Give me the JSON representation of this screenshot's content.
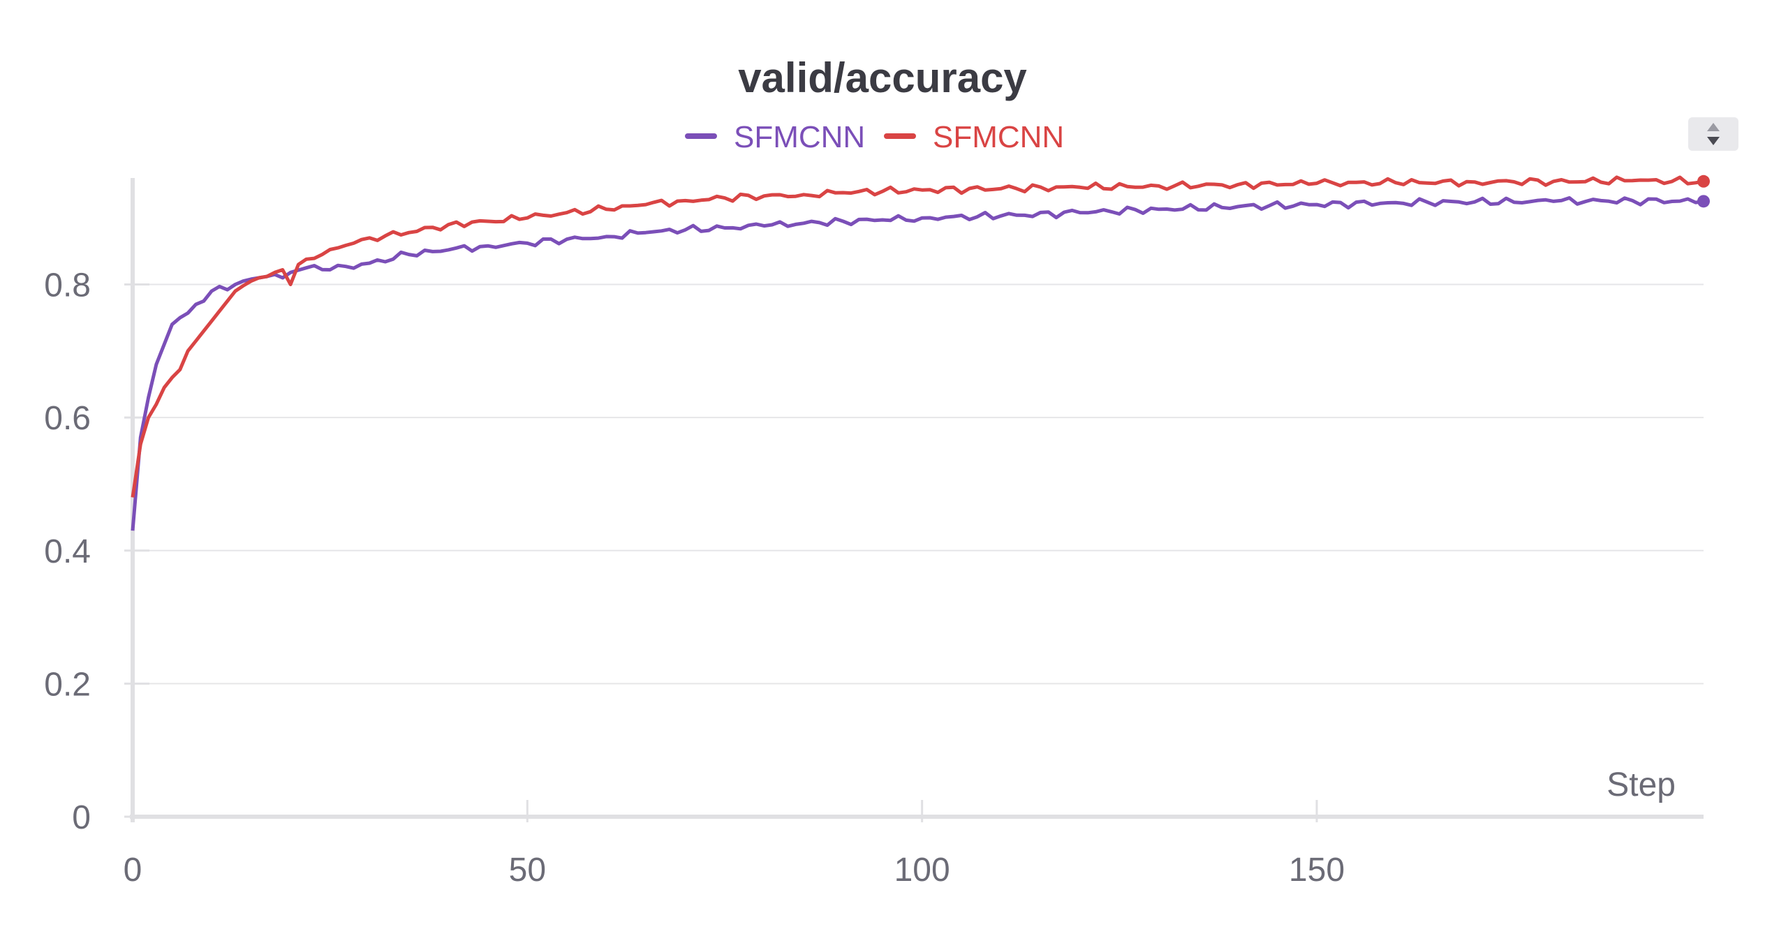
{
  "chart_data": {
    "type": "line",
    "title": "valid/accuracy",
    "xlabel": "Step",
    "ylabel": "",
    "xlim": [
      0,
      199
    ],
    "ylim": [
      0,
      0.96
    ],
    "x_ticks": [
      0,
      50,
      100,
      150
    ],
    "y_ticks": [
      0,
      0.2,
      0.4,
      0.6,
      0.8
    ],
    "y_tick_labels": [
      "0",
      "0.2",
      "0.4",
      "0.6",
      "0.8"
    ],
    "grid": true,
    "legend_position": "top-center",
    "series": [
      {
        "name": "SFMCNN",
        "color": "#7b4fb8",
        "anchors": [
          [
            0,
            0.43
          ],
          [
            1,
            0.57
          ],
          [
            2,
            0.63
          ],
          [
            3,
            0.68
          ],
          [
            4,
            0.71
          ],
          [
            5,
            0.74
          ],
          [
            6,
            0.75
          ],
          [
            7,
            0.757
          ],
          [
            8,
            0.77
          ],
          [
            9,
            0.775
          ],
          [
            10,
            0.79
          ],
          [
            11,
            0.797
          ],
          [
            12,
            0.792
          ],
          [
            13,
            0.8
          ],
          [
            14,
            0.805
          ],
          [
            15,
            0.808
          ],
          [
            16,
            0.81
          ],
          [
            17,
            0.812
          ],
          [
            18,
            0.815
          ],
          [
            19,
            0.81
          ],
          [
            20,
            0.818
          ],
          [
            22,
            0.825
          ],
          [
            25,
            0.822
          ],
          [
            30,
            0.832
          ],
          [
            35,
            0.845
          ],
          [
            40,
            0.852
          ],
          [
            45,
            0.858
          ],
          [
            50,
            0.862
          ],
          [
            55,
            0.868
          ],
          [
            60,
            0.872
          ],
          [
            65,
            0.878
          ],
          [
            70,
            0.882
          ],
          [
            75,
            0.885
          ],
          [
            80,
            0.888
          ],
          [
            85,
            0.892
          ],
          [
            90,
            0.895
          ],
          [
            95,
            0.897
          ],
          [
            100,
            0.9
          ],
          [
            110,
            0.903
          ],
          [
            120,
            0.908
          ],
          [
            130,
            0.913
          ],
          [
            140,
            0.917
          ],
          [
            150,
            0.92
          ],
          [
            160,
            0.923
          ],
          [
            170,
            0.924
          ],
          [
            180,
            0.925
          ],
          [
            190,
            0.926
          ],
          [
            199,
            0.925
          ]
        ]
      },
      {
        "name": "SFMCNN",
        "color": "#d94444",
        "anchors": [
          [
            0,
            0.48
          ],
          [
            1,
            0.56
          ],
          [
            2,
            0.6
          ],
          [
            3,
            0.62
          ],
          [
            4,
            0.645
          ],
          [
            5,
            0.66
          ],
          [
            6,
            0.672
          ],
          [
            7,
            0.7
          ],
          [
            8,
            0.715
          ],
          [
            9,
            0.73
          ],
          [
            10,
            0.745
          ],
          [
            11,
            0.76
          ],
          [
            12,
            0.775
          ],
          [
            13,
            0.79
          ],
          [
            14,
            0.798
          ],
          [
            15,
            0.805
          ],
          [
            16,
            0.81
          ],
          [
            17,
            0.812
          ],
          [
            18,
            0.818
          ],
          [
            19,
            0.822
          ],
          [
            20,
            0.8
          ],
          [
            21,
            0.83
          ],
          [
            22,
            0.838
          ],
          [
            24,
            0.845
          ],
          [
            26,
            0.855
          ],
          [
            28,
            0.862
          ],
          [
            30,
            0.87
          ],
          [
            35,
            0.878
          ],
          [
            40,
            0.89
          ],
          [
            45,
            0.895
          ],
          [
            50,
            0.9
          ],
          [
            55,
            0.908
          ],
          [
            60,
            0.913
          ],
          [
            65,
            0.92
          ],
          [
            70,
            0.926
          ],
          [
            75,
            0.93
          ],
          [
            80,
            0.933
          ],
          [
            85,
            0.935
          ],
          [
            90,
            0.938
          ],
          [
            95,
            0.94
          ],
          [
            100,
            0.942
          ],
          [
            110,
            0.944
          ],
          [
            120,
            0.946
          ],
          [
            130,
            0.948
          ],
          [
            140,
            0.95
          ],
          [
            150,
            0.952
          ],
          [
            160,
            0.953
          ],
          [
            170,
            0.954
          ],
          [
            180,
            0.955
          ],
          [
            190,
            0.956
          ],
          [
            199,
            0.955
          ]
        ]
      }
    ]
  }
}
